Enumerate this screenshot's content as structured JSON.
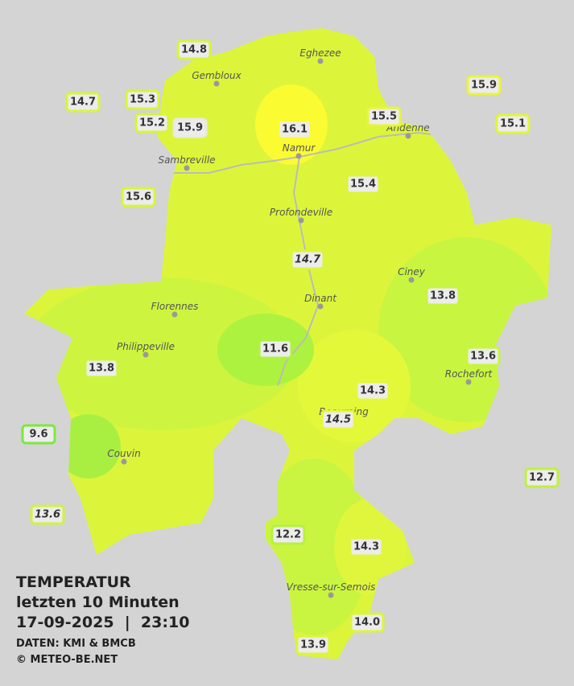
{
  "title": {
    "line1": "TEMPERATUR",
    "line2": "letzten 10 Minuten",
    "line3": "17-09-2025  |  23:10",
    "source": "DATEN: KMI & BMCB",
    "copyright": "© METEO-BE.NET"
  },
  "towns": [
    "Eghezee",
    "Gembloux",
    "Andenne",
    "Namur",
    "Sambreville",
    "Profondeville",
    "Ciney",
    "Dinant",
    "Florennes",
    "Philippeville",
    "Rochefort",
    "Beauraing",
    "Couvin",
    "Vresse-sur-Semois"
  ],
  "readings": [
    "14.8",
    "15.3",
    "14.7",
    "15.2",
    "15.9",
    "16.1",
    "15.5",
    "15.9",
    "15.1",
    "15.6",
    "15.4",
    "14.7",
    "13.8",
    "11.6",
    "13.8",
    "13.6",
    "14.3",
    "14.5",
    "9.6",
    "12.7",
    "13.6",
    "12.2",
    "14.3",
    "14.0",
    "13.9"
  ]
}
